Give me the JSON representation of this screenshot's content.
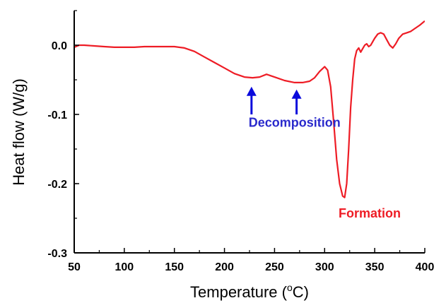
{
  "chart_data": {
    "type": "line",
    "title": "",
    "xlabel": "Temperature (",
    "xlabel_sup": "o",
    "xlabel_suffix": "C)",
    "ylabel": "Heat flow (W/g)",
    "xlim": [
      50,
      400
    ],
    "ylim": [
      -0.3,
      0.05
    ],
    "xticks": [
      50,
      100,
      150,
      200,
      250,
      300,
      350,
      400
    ],
    "xtick_labels": [
      "50",
      "100",
      "150",
      "200",
      "250",
      "300",
      "350",
      "400"
    ],
    "yticks": [
      0.0,
      -0.1,
      -0.2,
      -0.3
    ],
    "ytick_labels": [
      "0.0",
      "-0.1",
      "-0.2",
      "-0.3"
    ],
    "grid": false,
    "series": [
      {
        "color": "#ee1c25",
        "x": [
          50,
          55,
          60,
          70,
          80,
          90,
          100,
          110,
          120,
          130,
          140,
          150,
          160,
          170,
          180,
          190,
          200,
          210,
          220,
          228,
          235,
          242,
          250,
          260,
          270,
          278,
          285,
          290,
          295,
          300,
          303,
          306,
          309,
          312,
          315,
          318,
          320,
          322,
          324,
          326,
          328,
          330,
          332,
          334,
          336,
          338,
          340,
          342,
          344,
          346,
          348,
          350,
          353,
          356,
          359,
          362,
          365,
          368,
          371,
          374,
          378,
          382,
          386,
          390,
          395,
          400
        ],
        "y": [
          -0.003,
          0.0,
          0.0,
          -0.001,
          -0.002,
          -0.003,
          -0.003,
          -0.003,
          -0.002,
          -0.002,
          -0.002,
          -0.002,
          -0.004,
          -0.009,
          -0.017,
          -0.025,
          -0.033,
          -0.041,
          -0.046,
          -0.047,
          -0.046,
          -0.042,
          -0.046,
          -0.051,
          -0.054,
          -0.054,
          -0.052,
          -0.047,
          -0.038,
          -0.031,
          -0.036,
          -0.06,
          -0.11,
          -0.165,
          -0.2,
          -0.218,
          -0.22,
          -0.2,
          -0.15,
          -0.09,
          -0.05,
          -0.02,
          -0.008,
          -0.004,
          -0.01,
          -0.005,
          0.0,
          0.002,
          -0.002,
          0.0,
          0.005,
          0.01,
          0.016,
          0.018,
          0.016,
          0.008,
          0.0,
          -0.004,
          0.002,
          0.01,
          0.016,
          0.018,
          0.02,
          0.024,
          0.029,
          0.035
        ]
      }
    ],
    "annotations": [
      {
        "text": "Decomposition",
        "color": "#2a2acc",
        "x": 270,
        "y": -0.118
      },
      {
        "text": "Formation",
        "color": "#ee1c25",
        "x": 345,
        "y": -0.249
      }
    ],
    "arrows": [
      {
        "x": 227,
        "y_from": -0.1,
        "y_to": -0.06,
        "color": "#0a0adc"
      },
      {
        "x": 272,
        "y_from": -0.1,
        "y_to": -0.064,
        "color": "#0a0adc"
      }
    ]
  }
}
